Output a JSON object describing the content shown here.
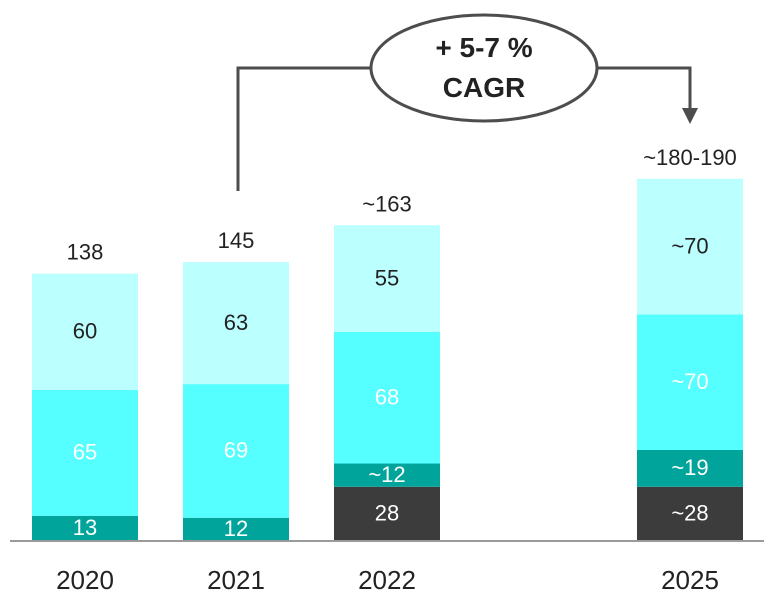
{
  "chart_data": {
    "type": "bar",
    "stacked": true,
    "categories": [
      "2020",
      "2021",
      "2022",
      "2025"
    ],
    "series": [
      {
        "values": [
          0,
          0,
          28,
          28
        ],
        "labels": [
          "",
          "",
          "28",
          "~28"
        ],
        "color": "#3c3c3c",
        "text_color": "#ffffff"
      },
      {
        "values": [
          13,
          12,
          12,
          19
        ],
        "labels": [
          "13",
          "12",
          "~12",
          "~19"
        ],
        "color": "#00a49a",
        "text_color": "#ffffff"
      },
      {
        "values": [
          65,
          69,
          68,
          70
        ],
        "labels": [
          "65",
          "69",
          "68",
          "~70"
        ],
        "color": "#55ffff",
        "text_color": "#ffffff"
      },
      {
        "values": [
          60,
          63,
          55,
          70
        ],
        "labels": [
          "60",
          "63",
          "55",
          "~70"
        ],
        "color": "#bbffff",
        "text_color": "#222222"
      }
    ],
    "totals": [
      "138",
      "145",
      "~163",
      "~180-190"
    ],
    "annotation": {
      "line1": "+ 5-7 %",
      "line2": "CAGR"
    },
    "grid": false,
    "legend": "none"
  }
}
